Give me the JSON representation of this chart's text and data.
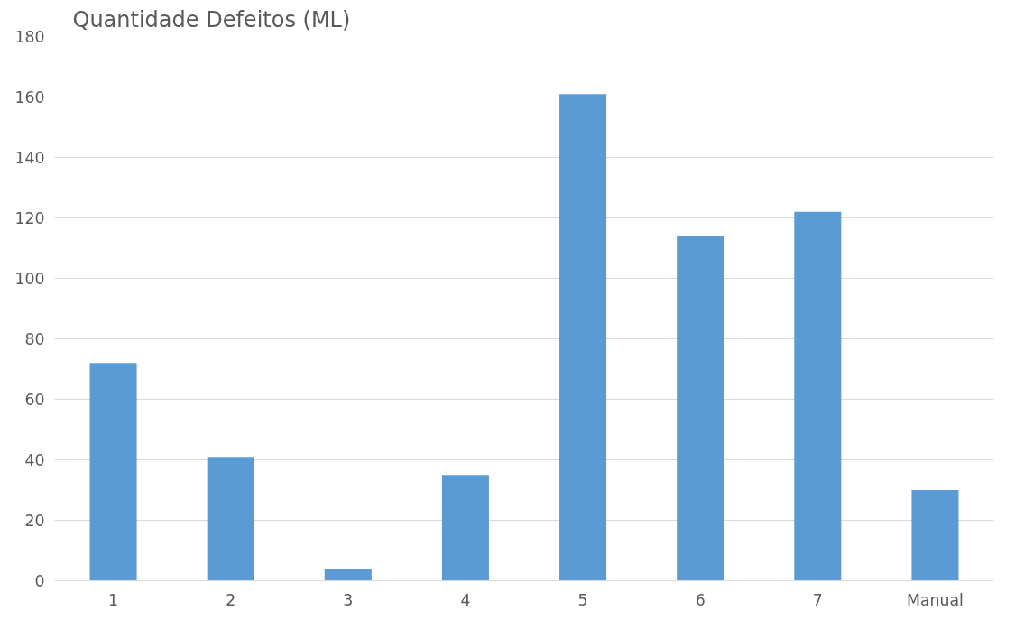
{
  "chart_data": {
    "type": "bar",
    "title": "Quantidade Defeitos (ML)",
    "categories": [
      "1",
      "2",
      "3",
      "4",
      "5",
      "6",
      "7",
      "Manual"
    ],
    "values": [
      72,
      41,
      4,
      35,
      161,
      114,
      122,
      30
    ],
    "color": "#5b9bd5",
    "ylim": [
      0,
      180
    ],
    "yticks": [
      0,
      20,
      40,
      60,
      80,
      100,
      120,
      140,
      160,
      180
    ],
    "grid": "y"
  }
}
